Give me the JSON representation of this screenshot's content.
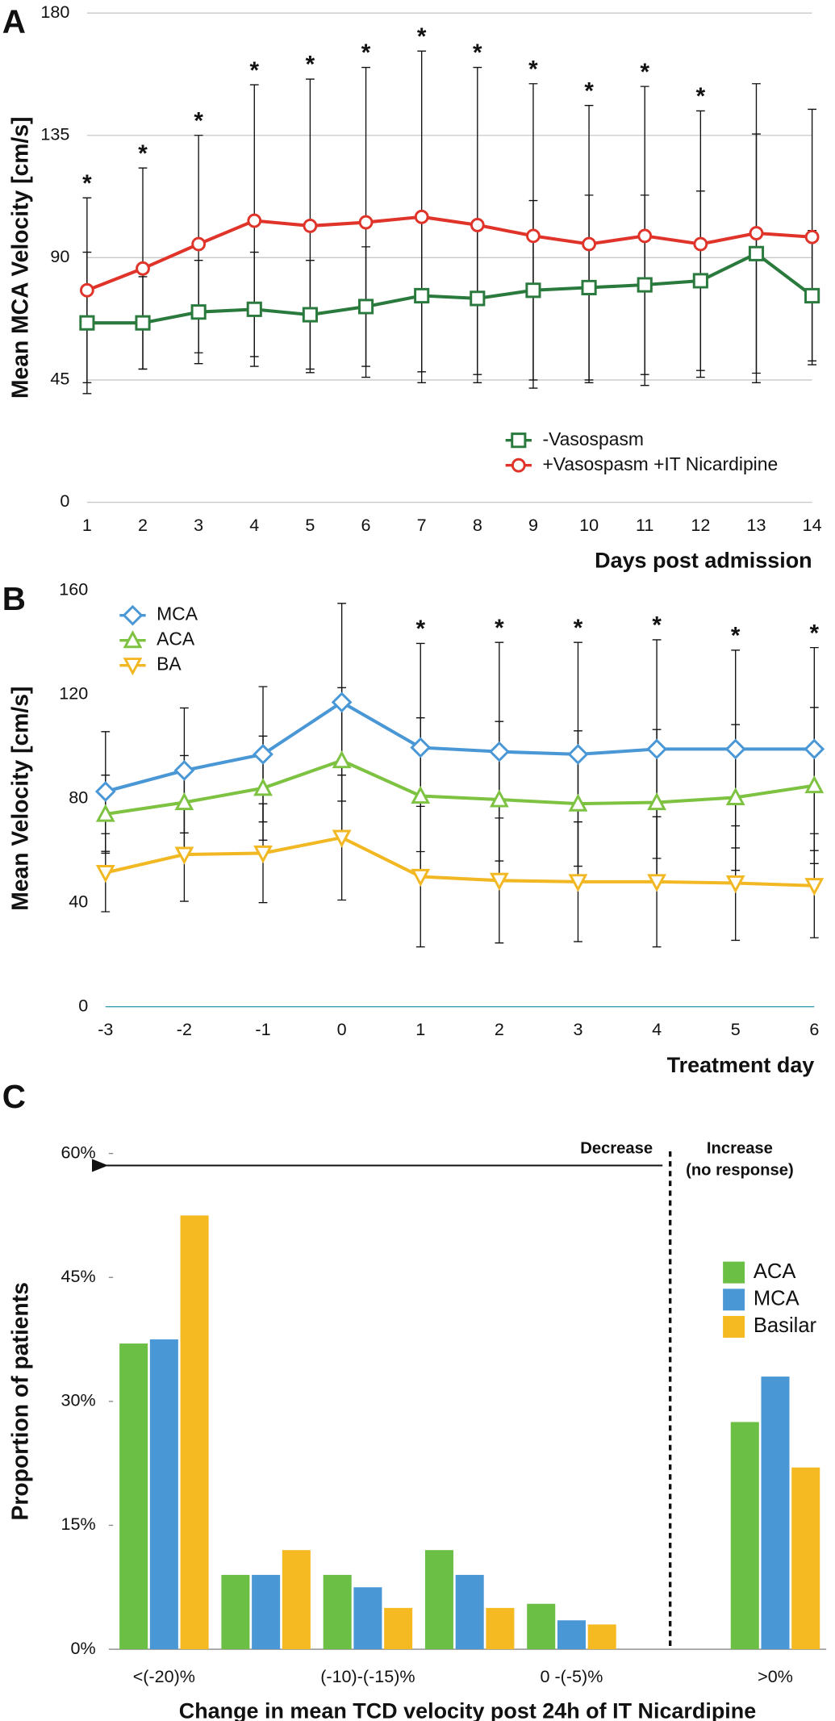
{
  "chart_data": [
    {
      "type": "line",
      "panel": "A",
      "xlabel": "Days post admission",
      "ylabel": "Mean MCA Velocity [cm/s]",
      "x": [
        1,
        2,
        3,
        4,
        5,
        6,
        7,
        8,
        9,
        10,
        11,
        12,
        13,
        14
      ],
      "xlim": [
        1,
        14
      ],
      "xticks": [
        1,
        2,
        3,
        4,
        5,
        6,
        7,
        8,
        9,
        10,
        11,
        12,
        13,
        14
      ],
      "ylim": [
        0,
        180
      ],
      "yticks": [
        0,
        45,
        90,
        135,
        180
      ],
      "grid": true,
      "legend": "lower right",
      "series": [
        {
          "name": "-Vasospasm",
          "color": "#2a7a3e",
          "marker": "square",
          "values": [
            66,
            66,
            70,
            71,
            69,
            72,
            76,
            75,
            78,
            79,
            80,
            81.5,
            91.5,
            76
          ],
          "errors": [
            26,
            17,
            19,
            21,
            20,
            22,
            28,
            28,
            33,
            34,
            33,
            33,
            44,
            24
          ]
        },
        {
          "name": "+Vasospasm +IT Nicardipine",
          "color": "#e0342a",
          "marker": "circle",
          "values": [
            78,
            86,
            95,
            103.6,
            101.7,
            103,
            105,
            102,
            98,
            95,
            98,
            95,
            99,
            97.6
          ],
          "errors": [
            34,
            37,
            40,
            50,
            54,
            57,
            61,
            58,
            56,
            51,
            55,
            49,
            55,
            47
          ]
        }
      ],
      "annotations": [
        {
          "x": 1,
          "text": "*"
        },
        {
          "x": 2,
          "text": "*"
        },
        {
          "x": 3,
          "text": "*"
        },
        {
          "x": 4,
          "text": "*"
        },
        {
          "x": 5,
          "text": "*"
        },
        {
          "x": 6,
          "text": "*"
        },
        {
          "x": 7,
          "text": "*"
        },
        {
          "x": 8,
          "text": "*"
        },
        {
          "x": 9,
          "text": "*"
        },
        {
          "x": 10,
          "text": "*"
        },
        {
          "x": 11,
          "text": "*"
        },
        {
          "x": 12,
          "text": "*"
        }
      ]
    },
    {
      "type": "line",
      "panel": "B",
      "xlabel": "Treatment day",
      "ylabel": "Mean Velocity [cm/s]",
      "x": [
        -3,
        -2,
        -1,
        0,
        1,
        2,
        3,
        4,
        5,
        6
      ],
      "xlim": [
        -3,
        6
      ],
      "xticks": [
        -3,
        -2,
        -1,
        0,
        1,
        2,
        3,
        4,
        5,
        6
      ],
      "ylim": [
        0,
        160
      ],
      "yticks": [
        0,
        40,
        80,
        120,
        160
      ],
      "grid": false,
      "legend": "upper left",
      "series": [
        {
          "name": "MCA",
          "color": "#4a97d6",
          "marker": "diamond",
          "values": [
            82.7,
            90.8,
            97,
            117,
            99.6,
            98,
            97,
            99,
            99,
            99
          ],
          "errors": [
            23,
            24,
            26,
            38,
            40,
            42,
            43,
            42,
            38,
            39
          ]
        },
        {
          "name": "ACA",
          "color": "#7dc241",
          "marker": "triangle-up",
          "values": [
            74,
            78.5,
            84,
            94.6,
            81,
            79.6,
            78,
            78.5,
            80.4,
            85
          ],
          "errors": [
            15,
            18,
            20,
            28,
            30,
            30,
            28,
            28,
            28,
            30
          ]
        },
        {
          "name": "BA",
          "color": "#f2b824",
          "marker": "triangle-down",
          "values": [
            51.5,
            58.5,
            59,
            65,
            50,
            48.5,
            48,
            48,
            47.5,
            46.5
          ],
          "errors": [
            15,
            18,
            19,
            24,
            27,
            24,
            23,
            25,
            22,
            20
          ]
        }
      ],
      "annotations": [
        {
          "x": 1,
          "text": "*"
        },
        {
          "x": 2,
          "text": "*"
        },
        {
          "x": 3,
          "text": "*"
        },
        {
          "x": 4,
          "text": "*"
        },
        {
          "x": 5,
          "text": "*"
        },
        {
          "x": 6,
          "text": "*"
        }
      ]
    },
    {
      "type": "bar",
      "panel": "C",
      "xlabel": "Change in mean TCD velocity post 24h of IT Nicardipine",
      "ylabel": "Proportion of patients",
      "categories": [
        "<(-20)%",
        null,
        "(-10)-(-15)%",
        null,
        "0 -(-5)%",
        null,
        ">0%"
      ],
      "ylim": [
        0,
        60
      ],
      "yticks": [
        {
          "value": 0,
          "label": "0%"
        },
        {
          "value": 15,
          "label": "15%"
        },
        {
          "value": 30,
          "label": "30%"
        },
        {
          "value": 45,
          "label": "45%"
        },
        {
          "value": 60,
          "label": "60%"
        }
      ],
      "grid": false,
      "legend": "upper right",
      "series": [
        {
          "name": "ACA",
          "color": "#6bbf45",
          "values": [
            37,
            9,
            9,
            12,
            5.5,
            null,
            27.5
          ]
        },
        {
          "name": "MCA",
          "color": "#4a97d6",
          "values": [
            37.5,
            9,
            7.5,
            9,
            3.5,
            null,
            33
          ]
        },
        {
          "name": "Basilar",
          "color": "#f5b922",
          "values": [
            52.5,
            12,
            5,
            5,
            3,
            null,
            22
          ]
        }
      ],
      "annotations": [
        {
          "text": "Decrease"
        },
        {
          "text": "Increase"
        },
        {
          "text": "(no response)"
        }
      ]
    }
  ]
}
